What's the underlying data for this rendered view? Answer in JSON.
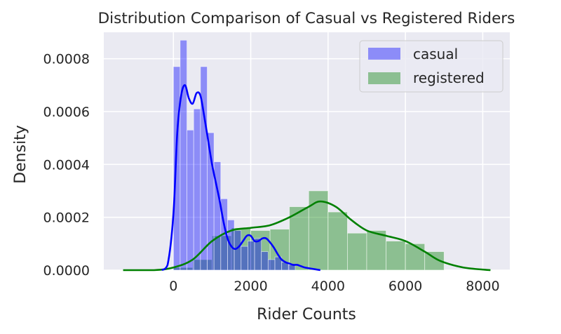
{
  "chart_data": {
    "type": "histogram",
    "title": "Distribution Comparison of Casual vs Registered Riders",
    "xlabel": "Rider Counts",
    "ylabel": "Density",
    "xlim": [
      -1800,
      8700
    ],
    "ylim": [
      0,
      0.0009
    ],
    "xticks": [
      0,
      2000,
      4000,
      6000,
      8000
    ],
    "xtick_labels": [
      "0",
      "2000",
      "4000",
      "6000",
      "8000"
    ],
    "yticks": [
      0,
      0.0002,
      0.0004,
      0.0006,
      0.0008
    ],
    "ytick_labels": [
      "0.0000",
      "0.0002",
      "0.0004",
      "0.0006",
      "0.0008"
    ],
    "grid": true,
    "legend_position": "top-right",
    "series": [
      {
        "name": "casual",
        "color": "#0000ff",
        "histogram": {
          "bin_edges": [
            0,
            175,
            350,
            525,
            700,
            875,
            1050,
            1225,
            1400,
            1575,
            1750,
            1925,
            2100,
            2275,
            2450,
            2625,
            2800,
            2975,
            3150
          ],
          "density": [
            0.00077,
            0.00087,
            0.00053,
            0.00061,
            0.00077,
            0.00052,
            0.00041,
            0.00027,
            0.00019,
            0.00015,
            9e-05,
            0.00011,
            0.00012,
            7e-05,
            4e-05,
            5e-05,
            3e-05,
            2e-05
          ]
        },
        "kde": {
          "x": [
            -300,
            -150,
            0,
            100,
            200,
            300,
            400,
            500,
            600,
            700,
            800,
            900,
            1000,
            1100,
            1200,
            1300,
            1400,
            1500,
            1600,
            1700,
            1800,
            1900,
            2000,
            2100,
            2200,
            2300,
            2400,
            2500,
            2600,
            2700,
            2800,
            2900,
            3000,
            3100,
            3200,
            3300,
            3400,
            3600,
            3800
          ],
          "y": [
            0.0,
            2e-05,
            0.00021,
            0.00052,
            0.00066,
            0.0007,
            0.00065,
            0.00063,
            0.00067,
            0.00066,
            0.00058,
            0.00049,
            0.0004,
            0.00033,
            0.00026,
            0.00018,
            0.00012,
            9e-05,
            8e-05,
            9e-05,
            0.00011,
            0.00013,
            0.00013,
            0.00011,
            0.00011,
            0.00012,
            0.00012,
            0.000105,
            8.5e-05,
            6e-05,
            4e-05,
            3e-05,
            2.5e-05,
            2e-05,
            2e-05,
            1.5e-05,
            1e-05,
            5e-06,
            0.0
          ]
        }
      },
      {
        "name": "registered",
        "color": "#008000",
        "histogram": {
          "bin_edges": [
            0,
            500,
            1000,
            1500,
            2000,
            2500,
            3000,
            3500,
            4000,
            4500,
            5000,
            5500,
            6000,
            6500,
            7000
          ],
          "density": [
            1e-05,
            4e-05,
            0.00013,
            0.00016,
            0.00015,
            0.000155,
            0.00024,
            0.0003,
            0.00022,
            0.00014,
            0.00015,
            0.00011,
            0.0001,
            7e-05
          ]
        },
        "kde": {
          "x": [
            -1300,
            -500,
            0,
            500,
            1000,
            1500,
            2000,
            2500,
            3000,
            3500,
            3800,
            4200,
            4600,
            5000,
            5500,
            6000,
            6500,
            6900,
            7500,
            8200
          ],
          "y": [
            0.0,
            0.0,
            1e-05,
            4e-05,
            0.00011,
            0.00015,
            0.00016,
            0.00017,
            0.0002,
            0.00024,
            0.00026,
            0.00024,
            0.00019,
            0.00015,
            0.00013,
            0.00011,
            7e-05,
            3.5e-05,
            1e-05,
            0.0
          ]
        }
      }
    ]
  }
}
